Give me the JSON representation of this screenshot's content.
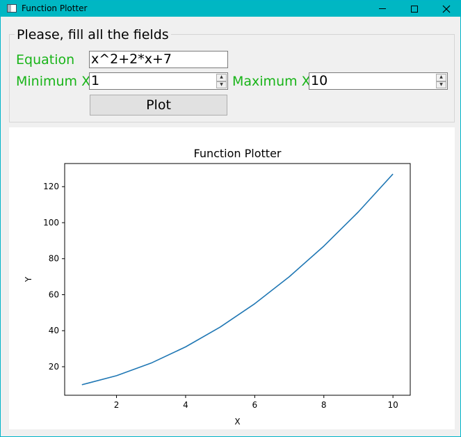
{
  "window": {
    "title": "Function Plotter",
    "accent_color": "#00b7c3",
    "icons": [
      "app-icon",
      "minimize-icon",
      "maximize-icon",
      "close-icon"
    ]
  },
  "form": {
    "group_title": "Please, fill all the fields",
    "label_color": "#18b418",
    "equation_label": "Equation",
    "equation_value": "x^2+2*x+7",
    "min_label": "Minimum X",
    "min_value": "1",
    "max_label": "Maximum X",
    "max_value": "10",
    "plot_button": "Plot"
  },
  "chart_data": {
    "type": "line",
    "title": "Function Plotter",
    "xlabel": "X",
    "ylabel": "Y",
    "xlim": [
      0.5,
      10.5
    ],
    "ylim": [
      4.15,
      132.85
    ],
    "xticks": [
      2,
      4,
      6,
      8,
      10
    ],
    "yticks": [
      20,
      40,
      60,
      80,
      100,
      120
    ],
    "grid": false,
    "line_color": "#1f77b4",
    "series": [
      {
        "x": [
          1,
          2,
          3,
          4,
          5,
          6,
          7,
          8,
          9,
          10
        ],
        "values": [
          10,
          15,
          22,
          31,
          42,
          55,
          70,
          87,
          106,
          127
        ]
      }
    ]
  }
}
